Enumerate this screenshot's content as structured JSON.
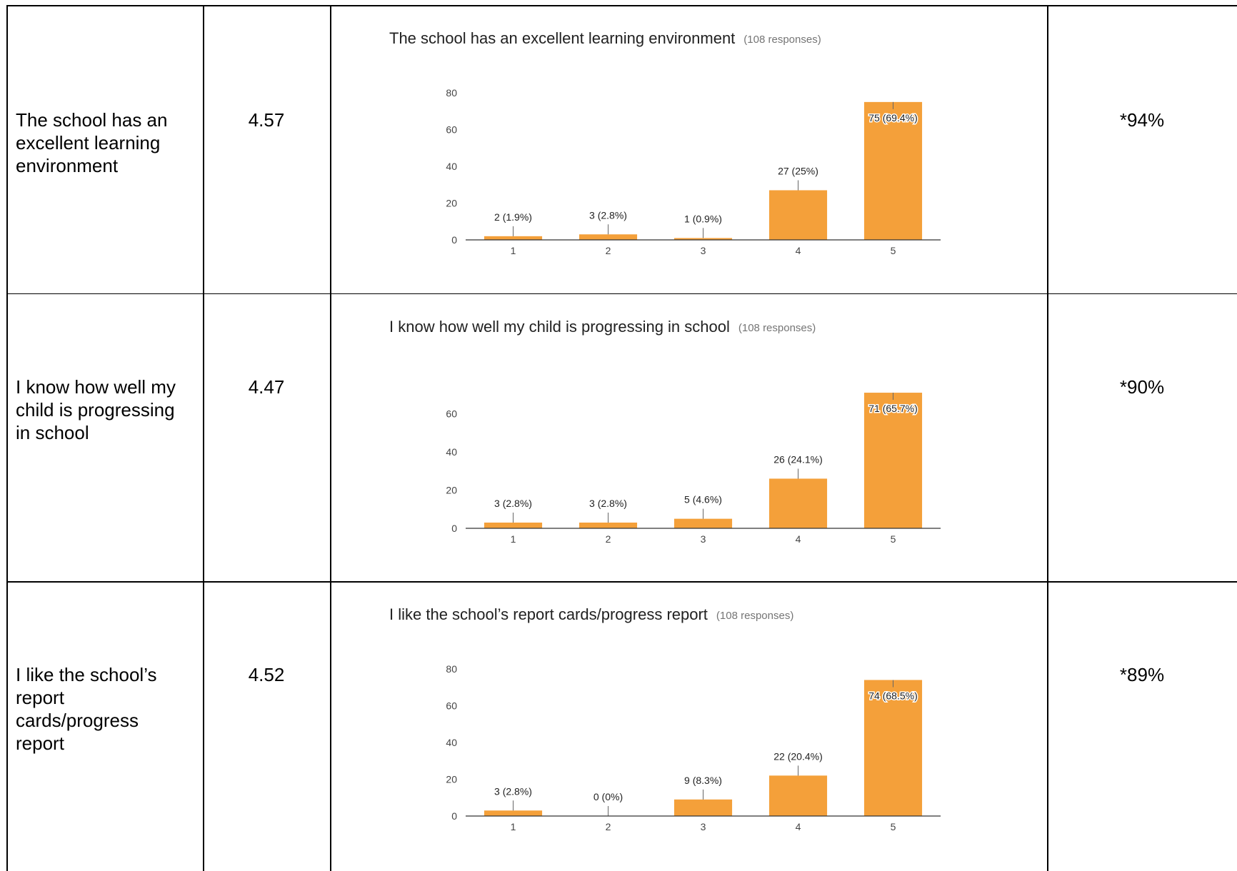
{
  "table": {
    "rows": [
      {
        "statement": "The school has an excellent learning environment",
        "mean": "4.57",
        "chart": {
          "type": "bar",
          "title": "The school has an excellent learning environment",
          "subtitle": "(108 responses)",
          "categories": [
            "1",
            "2",
            "3",
            "4",
            "5"
          ],
          "values": [
            2,
            3,
            1,
            27,
            75
          ],
          "value_labels": [
            "2 (1.9%)",
            "3 (2.8%)",
            "1 (0.9%)",
            "27 (25%)",
            "75 (69.4%)"
          ],
          "color": "#f4a03a",
          "ylim": [
            0,
            80
          ],
          "yticks": [
            0,
            20,
            40,
            60,
            80
          ]
        },
        "percent": "*94%"
      },
      {
        "statement": "I know how well my child is progressing in school",
        "mean": "4.47",
        "chart": {
          "type": "bar",
          "title": "I know how well my child is progressing in school",
          "subtitle": "(108 responses)",
          "categories": [
            "1",
            "2",
            "3",
            "4",
            "5"
          ],
          "values": [
            3,
            3,
            5,
            26,
            71
          ],
          "value_labels": [
            "3 (2.8%)",
            "3 (2.8%)",
            "5 (4.6%)",
            "26 (24.1%)",
            "71 (65.7%)"
          ],
          "color": "#f4a03a",
          "ylim": [
            0,
            77
          ],
          "yticks": [
            0,
            20,
            40,
            60
          ]
        },
        "percent": "*90%"
      },
      {
        "statement": "I like the school’s report cards/progress report",
        "mean": "4.52",
        "chart": {
          "type": "bar",
          "title": "I like the school’s report cards/progress report",
          "subtitle": "(108 responses)",
          "categories": [
            "1",
            "2",
            "3",
            "4",
            "5"
          ],
          "values": [
            3,
            0,
            9,
            22,
            74
          ],
          "value_labels": [
            "3 (2.8%)",
            "0 (0%)",
            "9 (8.3%)",
            "22 (20.4%)",
            "74 (68.5%)"
          ],
          "color": "#f4a03a",
          "ylim": [
            0,
            80
          ],
          "yticks": [
            0,
            20,
            40,
            60,
            80
          ]
        },
        "percent": "*89%"
      }
    ]
  }
}
